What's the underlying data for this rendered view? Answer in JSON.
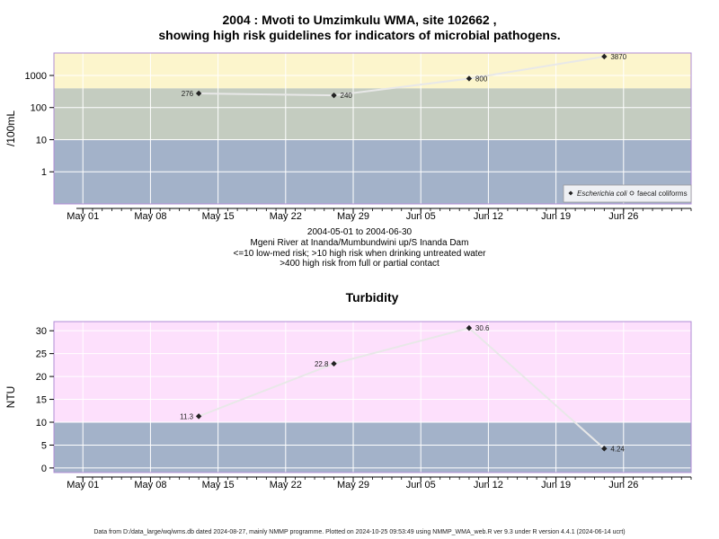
{
  "header": {
    "title_line1": "2004 : Mvoti to Umzimkulu WMA, site 102662 ,",
    "title_line2": "showing high risk guidelines for indicators of microbial pathogens."
  },
  "subtitle": {
    "line1": "2004-05-01 to 2004-06-30",
    "line2": "Mgeni River at Inanda/Mumbundwini up/S Inanda Dam",
    "line3": "<=10 low-med risk; >10 high risk when drinking untreated water",
    "line4": ">400 high risk from full or partial contact"
  },
  "footer": {
    "text": "Data from D:/data_large/wq/wms.db dated 2024-08-27, mainly NMMP programme. Plotted on 2024-10-25 09:53:49 using NMMP_WMA_web.R ver 9.3 under R version 4.4.1 (2024-06-14 ucrt)"
  },
  "colors": {
    "band_low": "#a3b2c9",
    "band_mid": "#c4ccc0",
    "band_high": "#fcf5cc",
    "turb_high": "#fde0fc",
    "border": "#b08cd6",
    "line": "#e8e8e8",
    "grid": "#ffffff"
  },
  "chart_data": [
    {
      "type": "scatter",
      "title": "",
      "ylabel": "/100mL",
      "yscale": "log",
      "ylim": [
        0.1,
        5000
      ],
      "xlim": [
        "2004-04-28",
        "2004-07-03"
      ],
      "x_ticks": [
        "2004-05-01",
        "2004-05-08",
        "2004-05-15",
        "2004-05-22",
        "2004-05-29",
        "2004-06-05",
        "2004-06-12",
        "2004-06-19",
        "2004-06-26"
      ],
      "x_tick_labels": [
        "May 01",
        "May 08",
        "May 15",
        "May 22",
        "May 29",
        "Jun 05",
        "Jun 12",
        "Jun 19",
        "Jun 26"
      ],
      "y_ticks": [
        1,
        10,
        100,
        1000
      ],
      "y_tick_labels": [
        "1",
        "10",
        "100",
        "1000"
      ],
      "bands": [
        {
          "from": 0.1,
          "to": 10,
          "color": "#a3b2c9"
        },
        {
          "from": 10,
          "to": 400,
          "color": "#c4ccc0"
        },
        {
          "from": 400,
          "to": 5000,
          "color": "#fcf5cc"
        }
      ],
      "legend": {
        "placement": "bottom-right",
        "entries": [
          {
            "label": "Escherichia coli",
            "marker": "filled-diamond",
            "italic": true
          },
          {
            "label": "faecal coliforms",
            "marker": "open-circle",
            "italic": false
          }
        ]
      },
      "series": [
        {
          "name": "Escherichia coli",
          "points": [
            {
              "x": "2004-05-13",
              "y": 276,
              "label": "276"
            },
            {
              "x": "2004-05-27",
              "y": 240,
              "label": "240"
            },
            {
              "x": "2004-06-10",
              "y": 800,
              "label": "800"
            },
            {
              "x": "2004-06-24",
              "y": 3870,
              "label": "3870"
            }
          ]
        }
      ]
    },
    {
      "type": "scatter",
      "title": "Turbidity",
      "ylabel": "NTU",
      "yscale": "linear",
      "ylim": [
        -1,
        32
      ],
      "xlim": [
        "2004-04-28",
        "2004-07-03"
      ],
      "x_ticks": [
        "2004-05-01",
        "2004-05-08",
        "2004-05-15",
        "2004-05-22",
        "2004-05-29",
        "2004-06-05",
        "2004-06-12",
        "2004-06-19",
        "2004-06-26"
      ],
      "x_tick_labels": [
        "May 01",
        "May 08",
        "May 15",
        "May 22",
        "May 29",
        "Jun 05",
        "Jun 12",
        "Jun 19",
        "Jun 26"
      ],
      "y_ticks": [
        0,
        5,
        10,
        15,
        20,
        25,
        30
      ],
      "y_tick_labels": [
        "0",
        "5",
        "10",
        "15",
        "20",
        "25",
        "30"
      ],
      "bands": [
        {
          "from": -1,
          "to": 10,
          "color": "#a3b2c9"
        },
        {
          "from": 10,
          "to": 32,
          "color": "#fde0fc"
        }
      ],
      "series": [
        {
          "name": "",
          "points": [
            {
              "x": "2004-05-13",
              "y": 11.3,
              "label": "11.3"
            },
            {
              "x": "2004-05-27",
              "y": 22.8,
              "label": "22.8"
            },
            {
              "x": "2004-06-10",
              "y": 30.6,
              "label": "30.6"
            },
            {
              "x": "2004-06-24",
              "y": 4.24,
              "label": "4.24"
            }
          ]
        }
      ]
    }
  ]
}
